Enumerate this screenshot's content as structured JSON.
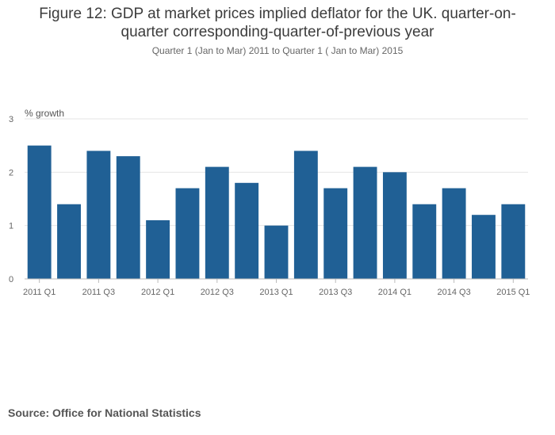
{
  "chart_data": {
    "type": "bar",
    "title": "Figure 12: GDP at market prices implied deflator for the UK. quarter-on-quarter corresponding-quarter-of-previous year",
    "subtitle": "Quarter 1 (Jan to Mar) 2011 to Quarter 1 ( Jan to Mar) 2015",
    "ylabel": "% growth",
    "xlabel": "",
    "categories": [
      "2011 Q1",
      "2011 Q2",
      "2011 Q3",
      "2011 Q4",
      "2012 Q1",
      "2012 Q2",
      "2012 Q3",
      "2012 Q4",
      "2013 Q1",
      "2013 Q2",
      "2013 Q3",
      "2013 Q4",
      "2014 Q1",
      "2014 Q2",
      "2014 Q3",
      "2014 Q4",
      "2015 Q1"
    ],
    "values": [
      2.5,
      1.4,
      2.4,
      2.3,
      1.1,
      1.7,
      2.1,
      1.8,
      1.0,
      2.4,
      1.7,
      2.1,
      2.0,
      1.4,
      1.7,
      1.2,
      1.4
    ],
    "x_tick_labels": [
      "2011 Q1",
      "2011 Q3",
      "2012 Q1",
      "2012 Q3",
      "2013 Q1",
      "2013 Q3",
      "2014 Q1",
      "2014 Q3",
      "2015 Q1"
    ],
    "y_ticks": [
      0,
      1,
      2,
      3
    ],
    "ylim": [
      0,
      3
    ],
    "grid": true,
    "bar_color": "#206095"
  },
  "source": "Source: Office for National Statistics"
}
